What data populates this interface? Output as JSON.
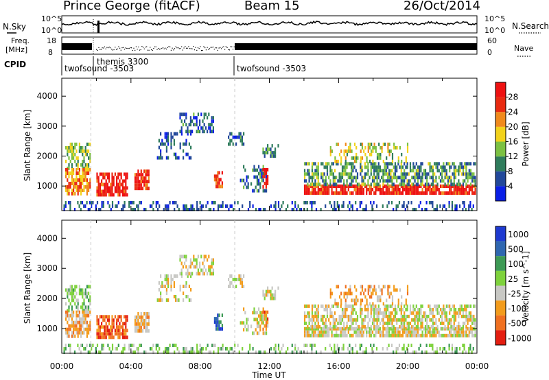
{
  "header": {
    "title": "Prince George (fitACF)",
    "beam": "Beam 15",
    "date": "26/Oct/2014"
  },
  "strips": {
    "nsky_label": "N.Sky",
    "nsearch_label": "N.Search",
    "nsky_ticks": [
      "10^5",
      "10^0"
    ],
    "nsearch_ticks": [
      "10^5",
      "10^0"
    ],
    "freq_label_1": "Freq.",
    "freq_label_2": "[MHz]",
    "freq_ticks": [
      "18",
      "8"
    ],
    "nave_label": "Nave",
    "nave_ticks": [
      "60",
      "0"
    ],
    "cpid_label": "CPID",
    "cpid_segments": [
      {
        "label": "twofsound -3503",
        "start_hour": 0
      },
      {
        "label": "themis 3300",
        "start_hour": 2
      },
      {
        "label": "twofsound -3503",
        "start_hour": 10
      }
    ]
  },
  "chart_data": [
    {
      "type": "heatmap",
      "name": "power",
      "ylabel": "Slant Range [km]",
      "xlim": [
        0,
        24
      ],
      "ylim": [
        180,
        4600
      ],
      "yticks": [
        "1000",
        "2000",
        "3000",
        "4000"
      ],
      "colorbar_label": "Power [dB]",
      "colorbar_ticks": [
        "4",
        "8",
        "12",
        "16",
        "20",
        "24",
        "28"
      ],
      "colors": [
        "#0a1fe6",
        "#22489a",
        "#2f7c5c",
        "#7cc142",
        "#f2d21b",
        "#f08a1c",
        "#e92a10",
        "#ee1111"
      ]
    },
    {
      "type": "heatmap",
      "name": "velocity",
      "ylabel": "Slant Range [km]",
      "xlabel": "Time UT",
      "xlim": [
        0,
        24
      ],
      "ylim": [
        180,
        4600
      ],
      "xticks": [
        "00:00",
        "04:00",
        "08:00",
        "12:00",
        "16:00",
        "20:00",
        "00:00"
      ],
      "yticks": [
        "1000",
        "2000",
        "3000",
        "4000"
      ],
      "colorbar_label": "Velocity [m s^-1]",
      "colorbar_ticks": [
        "1000",
        "500",
        "100",
        "25",
        "-25",
        "-100",
        "-500",
        "-1000"
      ],
      "colors": [
        "#1e3ad0",
        "#2f67b0",
        "#3d9a55",
        "#7ed23c",
        "#c8c8c4",
        "#f39c1c",
        "#f07020",
        "#e41e10"
      ]
    }
  ]
}
